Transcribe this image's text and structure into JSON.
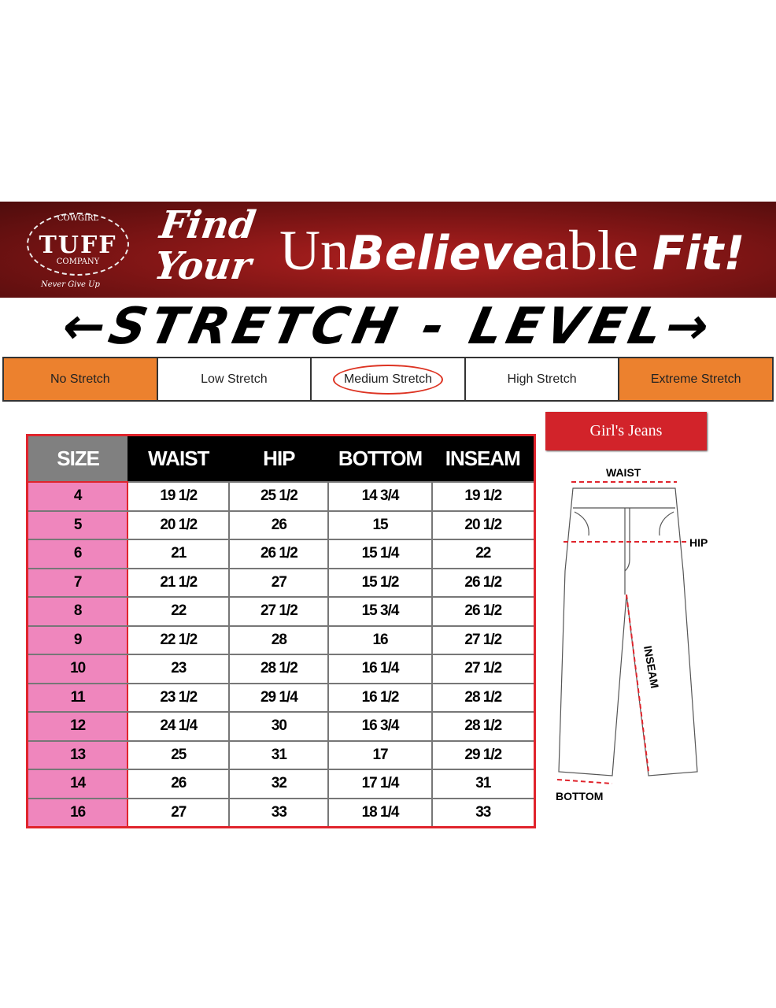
{
  "banner": {
    "logo_top": "COWGIRL",
    "logo_main": "TUFF",
    "logo_bottom": "COMPANY",
    "motto": "Never Give Up",
    "find": "Find",
    "your": "Your",
    "un": "Un",
    "believe": "Believe",
    "able": "able",
    "fit": "Fit!"
  },
  "stretch_title": "←STRETCH - LEVEL→",
  "stretch_levels": [
    "No Stretch",
    "Low Stretch",
    "Medium Stretch",
    "High Stretch",
    "Extreme Stretch"
  ],
  "selected_level": "Medium Stretch",
  "colors": {
    "banner": "#8a1616",
    "orange": "#ec812e",
    "pink": "#ef86bd",
    "red": "#e0242c"
  },
  "table": {
    "headers": [
      "SIZE",
      "WAIST",
      "HIP",
      "BOTTOM",
      "INSEAM"
    ],
    "rows": [
      [
        "4",
        "19 1/2",
        "25 1/2",
        "14 3/4",
        "19 1/2"
      ],
      [
        "5",
        "20 1/2",
        "26",
        "15",
        "20 1/2"
      ],
      [
        "6",
        "21",
        "26 1/2",
        "15 1/4",
        "22"
      ],
      [
        "7",
        "21 1/2",
        "27",
        "15 1/2",
        "26 1/2"
      ],
      [
        "8",
        "22",
        "27 1/2",
        "15 3/4",
        "26 1/2"
      ],
      [
        "9",
        "22 1/2",
        "28",
        "16",
        "27 1/2"
      ],
      [
        "10",
        "23",
        "28 1/2",
        "16 1/4",
        "27 1/2"
      ],
      [
        "11",
        "23 1/2",
        "29 1/4",
        "16 1/2",
        "28 1/2"
      ],
      [
        "12",
        "24 1/4",
        "30",
        "16 3/4",
        "28 1/2"
      ],
      [
        "13",
        "25",
        "31",
        "17",
        "29 1/2"
      ],
      [
        "14",
        "26",
        "32",
        "17 1/4",
        "31"
      ],
      [
        "16",
        "27",
        "33",
        "18 1/4",
        "33"
      ]
    ]
  },
  "diagram": {
    "label": "Girl's Jeans",
    "waist": "WAIST",
    "hip": "HIP",
    "inseam": "INSEAM",
    "bottom": "BOTTOM"
  }
}
